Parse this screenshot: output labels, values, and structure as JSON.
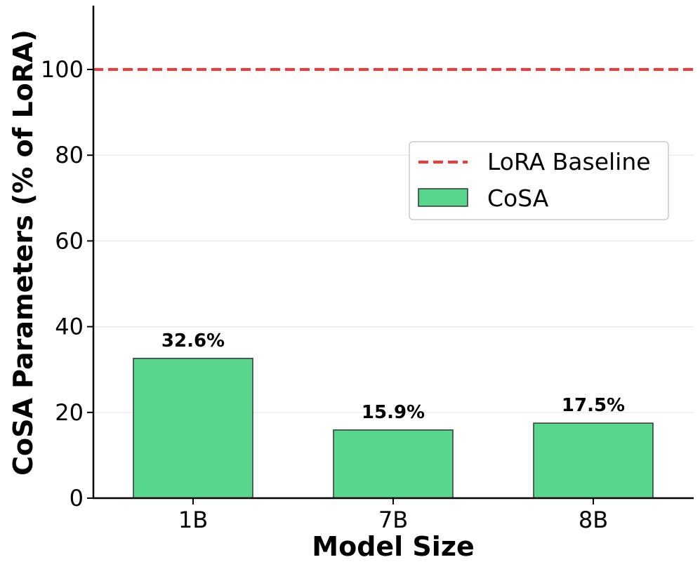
{
  "chart_data": {
    "type": "bar",
    "title": "",
    "xlabel": "Model Size",
    "ylabel": "CoSA Parameters (% of LoRA)",
    "categories": [
      "1B",
      "7B",
      "8B"
    ],
    "series": [
      {
        "name": "CoSA",
        "values": [
          32.6,
          15.9,
          17.5
        ],
        "labels": [
          "32.6%",
          "15.9%",
          "17.5%"
        ],
        "color": "#58d68d"
      }
    ],
    "reference_lines": [
      {
        "name": "LoRA Baseline",
        "y": 100,
        "style": "dashed",
        "color": "#ff3333"
      }
    ],
    "ylim": [
      0,
      115
    ],
    "yticks": [
      0,
      20,
      40,
      60,
      80,
      100
    ],
    "ytick_labels": [
      "0",
      "20",
      "40",
      "60",
      "80",
      "100"
    ],
    "grid": "horizontal",
    "legend": {
      "position": "right",
      "entries": [
        "LoRA Baseline",
        "CoSA"
      ]
    }
  }
}
